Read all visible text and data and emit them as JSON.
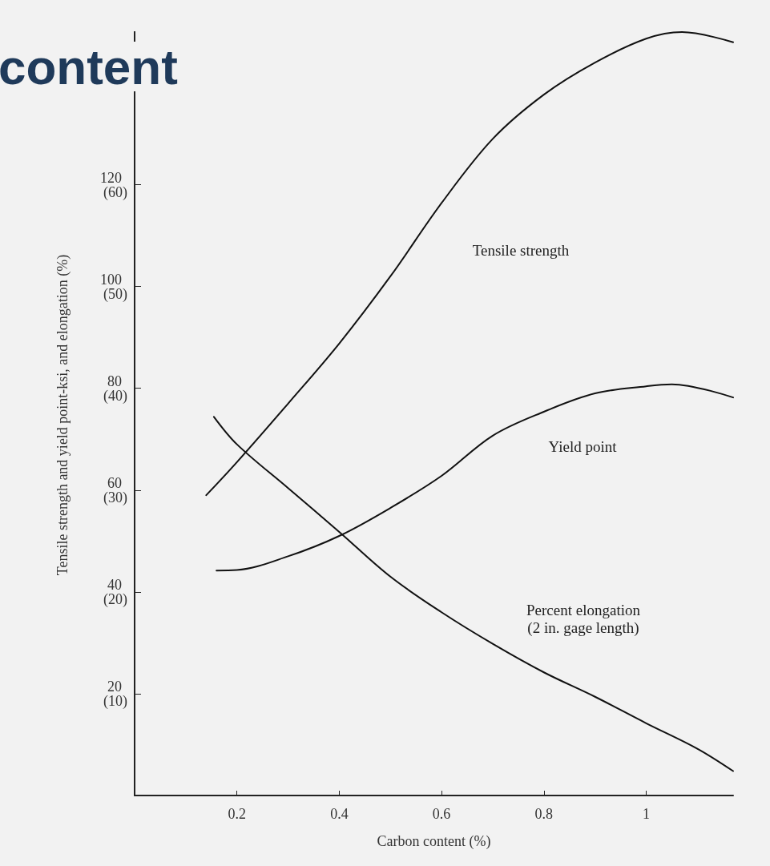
{
  "chart_data": {
    "type": "line",
    "title": "content",
    "xlabel": "Carbon content (%)",
    "ylabel": "Tensile strength and yield point-ksi, and elongation (%)",
    "xlim": [
      0,
      1.17
    ],
    "xticks": [
      0.2,
      0.4,
      0.6,
      0.8,
      1.0
    ],
    "ylim": [
      0,
      150
    ],
    "yticks": [
      20,
      40,
      60,
      80,
      100,
      120
    ],
    "y2lim": [
      0,
      75
    ],
    "y2ticks": [
      {
        "value": 10,
        "label": "(10)"
      },
      {
        "value": 20,
        "label": "(20)"
      },
      {
        "value": 30,
        "label": "(30)"
      },
      {
        "value": 40,
        "label": "(40)"
      },
      {
        "value": 50,
        "label": "(50)"
      },
      {
        "value": 60,
        "label": "(60)"
      }
    ],
    "grid": false,
    "marker": "none",
    "line_style": "solid",
    "series": [
      {
        "color": "#111111",
        "x": [
          0.14,
          0.2,
          0.3,
          0.4,
          0.5,
          0.6,
          0.7,
          0.8,
          0.9,
          1.0,
          1.07,
          1.17
        ],
        "values": [
          59,
          65.5,
          77,
          88.8,
          102,
          116.4,
          129,
          137.7,
          144,
          148.7,
          150,
          148
        ]
      },
      {
        "color": "#111111",
        "x": [
          0.16,
          0.2,
          0.3,
          0.4,
          0.5,
          0.6,
          0.7,
          0.8,
          0.9,
          1.0,
          1.05,
          1.17
        ],
        "values": [
          44.2,
          44.3,
          47,
          51,
          56.5,
          62.8,
          70.7,
          75.4,
          79,
          80.4,
          80.8,
          78.2
        ]
      },
      {
        "color": "#111111",
        "axis": "y2",
        "x": [
          0.155,
          0.2,
          0.3,
          0.4,
          0.5,
          0.6,
          0.7,
          0.8,
          0.9,
          1.0,
          1.1,
          1.17
        ],
        "values": [
          37.2,
          34.5,
          30.2,
          25.9,
          21.5,
          18,
          14.9,
          12.1,
          9.7,
          7.1,
          4.6,
          2.4
        ]
      }
    ],
    "annotations": [
      "Tensile strength",
      "Yield point",
      "Percent elongation\n(2 in. gage length)"
    ]
  }
}
